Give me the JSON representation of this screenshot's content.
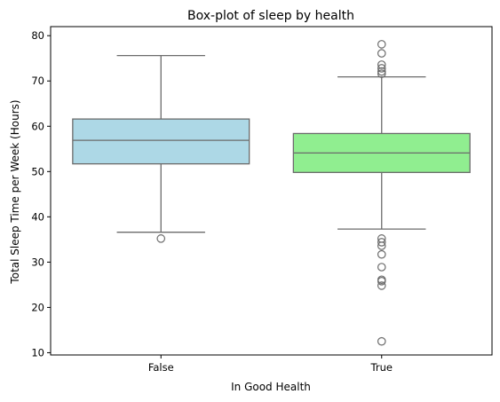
{
  "chart_data": {
    "type": "box",
    "title": "Box-plot of sleep by health",
    "xlabel": "In Good Health",
    "ylabel": "Total Sleep Time per Week (Hours)",
    "ylim": [
      9.5,
      82
    ],
    "yticks": [
      10,
      20,
      30,
      40,
      50,
      60,
      70,
      80
    ],
    "grid": false,
    "categories": [
      "False",
      "True"
    ],
    "boxes": [
      {
        "category": "False",
        "color": "#add8e6",
        "whisker_low": 36.6,
        "q1": 51.7,
        "median": 56.9,
        "q3": 61.6,
        "whisker_high": 75.6,
        "outliers": [
          35.2
        ]
      },
      {
        "category": "True",
        "color": "#90ee90",
        "whisker_low": 37.3,
        "q1": 49.8,
        "median": 54.1,
        "q3": 58.4,
        "whisker_high": 70.9,
        "outliers": [
          78.1,
          76.1,
          73.6,
          72.8,
          72.1,
          71.6,
          35.2,
          34.4,
          33.6,
          31.7,
          28.9,
          26.1,
          25.8,
          24.8,
          12.5
        ]
      }
    ],
    "style": {
      "line_color": "#6b6b6b",
      "axis_color": "#000000"
    }
  }
}
